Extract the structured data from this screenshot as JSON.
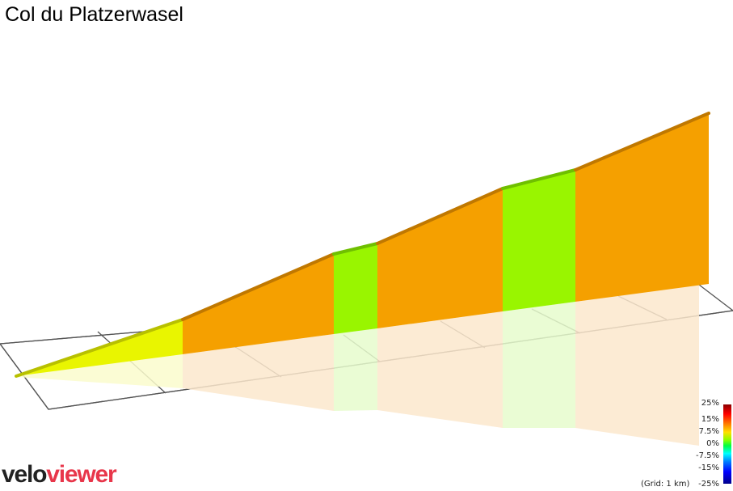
{
  "title": "Col du Platzerwasel",
  "logo": {
    "part1": "velo",
    "part2": "viewer"
  },
  "legend": {
    "ticks": [
      "25%",
      "15%",
      "7.5%",
      "0%",
      "-7.5%",
      "-15%",
      "-25%"
    ],
    "grid_note": "(Grid: 1 km)"
  },
  "colors": {
    "yellow_segment": "#e9f500",
    "orange_segment": "#f5a000",
    "green_segment": "#99f500",
    "shadow_orange": "#fbe8cc",
    "shadow_green": "#e6fbcc",
    "shadow_yellow": "#fafbcc",
    "grid_line": "#555555",
    "logo_red": "#e8364a"
  },
  "segments": [
    {
      "index": 1,
      "color": "yellow"
    },
    {
      "index": 2,
      "color": "orange"
    },
    {
      "index": 3,
      "color": "green"
    },
    {
      "index": 4,
      "color": "orange"
    },
    {
      "index": 5,
      "color": "green"
    },
    {
      "index": 6,
      "color": "orange"
    }
  ]
}
